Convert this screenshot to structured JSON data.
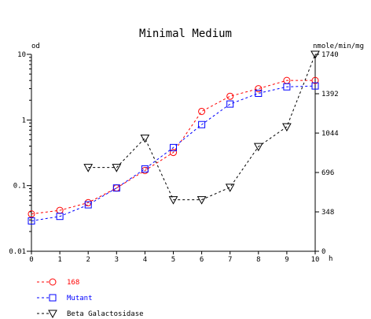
{
  "chart_data": {
    "type": "line",
    "title": "Minimal Medium",
    "xlabel": "h",
    "ylabel_left": "od",
    "ylabel_right": "nmole/min/mg",
    "x_range": [
      0,
      10
    ],
    "x_ticks": [
      "0",
      "1",
      "2",
      "3",
      "4",
      "5",
      "6",
      "7",
      "8",
      "9",
      "10"
    ],
    "y_left": {
      "scale": "log",
      "range": [
        0.01,
        10
      ],
      "ticks": [
        "10",
        "1",
        "0.1",
        "0.01"
      ]
    },
    "y_right": {
      "scale": "linear",
      "range": [
        0,
        1740
      ],
      "ticks": [
        "1740",
        "1392",
        "1044",
        "696",
        "348",
        "0"
      ]
    },
    "grid": false,
    "legend_position": "bottom-left",
    "series": [
      {
        "name": "168",
        "axis": "left",
        "marker": "circle",
        "color": "#ff0000",
        "line": "dashed",
        "x": [
          0,
          1,
          2,
          3,
          4,
          5,
          6,
          7,
          8,
          9,
          10
        ],
        "y": [
          0.037,
          0.042,
          0.055,
          0.092,
          0.17,
          0.32,
          1.35,
          2.3,
          3.0,
          4.0,
          4.0
        ]
      },
      {
        "name": "Mutant",
        "axis": "left",
        "marker": "square",
        "color": "#0000ff",
        "line": "dashed",
        "x": [
          0,
          1,
          2,
          3,
          4,
          5,
          6,
          7,
          8,
          9,
          10
        ],
        "y": [
          0.029,
          0.034,
          0.051,
          0.092,
          0.18,
          0.38,
          0.85,
          1.75,
          2.55,
          3.2,
          3.3
        ]
      },
      {
        "name": "Beta Galactosidase",
        "axis": "right",
        "marker": "triangle-down",
        "color": "#000000",
        "line": "dashed",
        "x": [
          2,
          3,
          4,
          5,
          6,
          7,
          8,
          9,
          10
        ],
        "y": [
          740,
          740,
          1000,
          455,
          455,
          565,
          925,
          1100,
          1740
        ]
      }
    ]
  }
}
